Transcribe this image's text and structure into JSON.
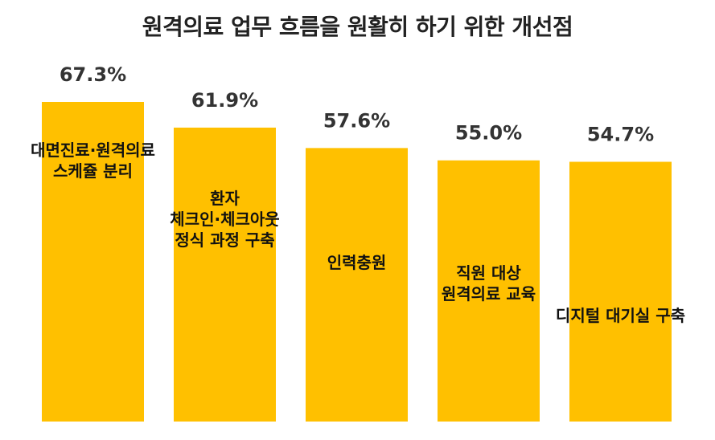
{
  "chart_data": {
    "type": "bar",
    "title": "원격의료 업무 흐름을 원활히 하기 위한 개선점",
    "categories": [
      [
        "대면진료·원격의료",
        "스케쥴 분리"
      ],
      [
        "환자",
        "체크인·체크아웃",
        "정식 과정 구축"
      ],
      [
        "인력충원"
      ],
      [
        "직원 대상",
        "원격의료 교육"
      ],
      [
        "디지털 대기실 구축"
      ]
    ],
    "values": [
      67.3,
      61.9,
      57.6,
      55.0,
      54.7
    ],
    "value_labels": [
      "67.3%",
      "61.9%",
      "57.6%",
      "55.0%",
      "54.7%"
    ],
    "unit": "%",
    "ylim": [
      0,
      70
    ],
    "bar_color": "#FFC000",
    "grid": false,
    "legend": "none"
  }
}
